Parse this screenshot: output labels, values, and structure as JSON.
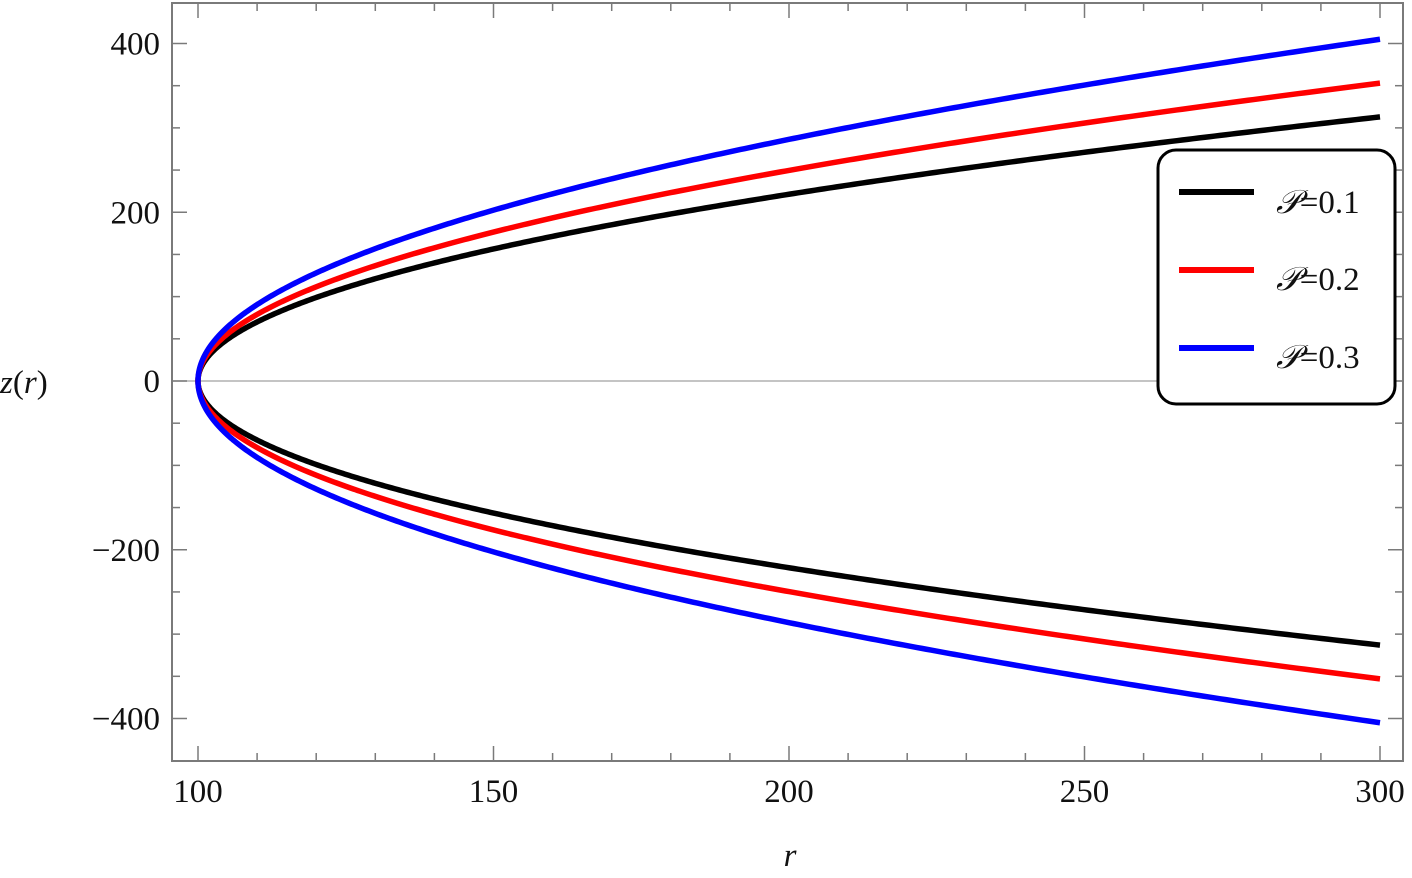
{
  "chart_data": {
    "type": "line",
    "title": "",
    "xlabel": "r",
    "ylabel": "z(r)",
    "xlim": [
      95.7,
      304
    ],
    "ylim": [
      -450,
      450
    ],
    "x_ticks": [
      100,
      150,
      200,
      250,
      300
    ],
    "x_tick_labels": [
      "100",
      "150",
      "200",
      "250",
      "300"
    ],
    "y_ticks": [
      400,
      200,
      0,
      -200,
      -400
    ],
    "y_tick_labels": [
      "400",
      "200",
      "0",
      "−200",
      "−400"
    ],
    "grid": false,
    "frame": true,
    "zero_line": true,
    "legend_position": "right, inside, vertically centered near z=0..250",
    "description": "Wormhole embedding profile z(r) = ±2√(b·(r−100)); throat at r=100, both branches plotted",
    "x": [
      100,
      101,
      105,
      110,
      120,
      130,
      150,
      175,
      200,
      225,
      250,
      275,
      300
    ],
    "series": [
      {
        "name": "𝒫=0.1",
        "color": "#000000",
        "upper": [
          0,
          22,
          49,
          70,
          99,
          121,
          157,
          192,
          221,
          247,
          271,
          293,
          313
        ],
        "lower": [
          0,
          -22,
          -49,
          -70,
          -99,
          -121,
          -157,
          -192,
          -221,
          -247,
          -271,
          -293,
          -313
        ]
      },
      {
        "name": "𝒫=0.2",
        "color": "#ff0000",
        "upper": [
          0,
          25,
          56,
          79,
          112,
          137,
          177,
          216,
          250,
          279,
          306,
          330,
          353
        ],
        "lower": [
          0,
          -25,
          -56,
          -79,
          -112,
          -137,
          -177,
          -216,
          -250,
          -279,
          -306,
          -330,
          -353
        ]
      },
      {
        "name": "𝒫=0.3",
        "color": "#0000ff",
        "upper": [
          0,
          29,
          64,
          91,
          128,
          157,
          202,
          248,
          286,
          321,
          351,
          379,
          405
        ],
        "lower": [
          0,
          -29,
          -64,
          -91,
          -128,
          -157,
          -202,
          -248,
          -286,
          -321,
          -351,
          -379,
          -405
        ]
      }
    ]
  },
  "axes": {
    "x_label": "r",
    "y_label_func": "z",
    "y_label_arg": "r"
  },
  "legend": {
    "items": [
      {
        "symbol": "𝒫",
        "label": "=0.1",
        "color": "#000000"
      },
      {
        "symbol": "𝒫",
        "label": "=0.2",
        "color": "#ff0000"
      },
      {
        "symbol": "𝒫",
        "label": "=0.3",
        "color": "#0000ff"
      }
    ]
  }
}
